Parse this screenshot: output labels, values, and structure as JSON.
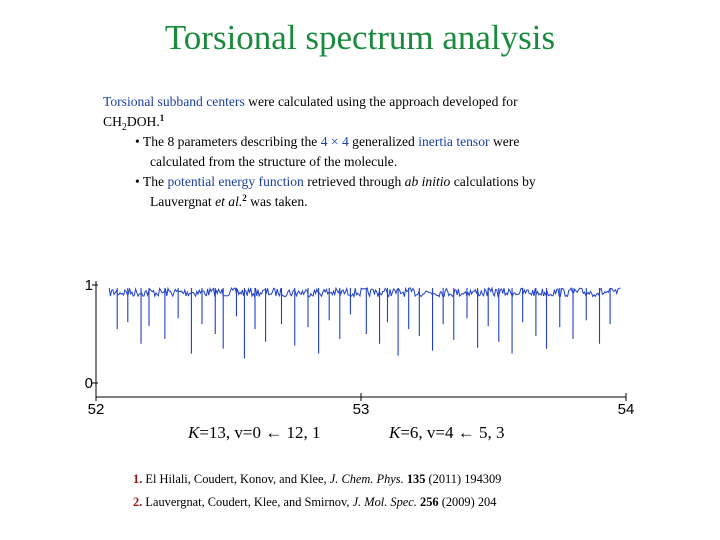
{
  "slide": {
    "title": "Torsional spectrum analysis",
    "intro": {
      "blue": "Torsional subband centers",
      "rest_a": " were calculated using the approach developed for",
      "formula_ch": "CH",
      "formula_sub": "2",
      "formula_rest": "DOH.",
      "ref_mark": "1"
    },
    "bullet1": {
      "marker": "•",
      "pre": " The 8 parameters describing the ",
      "dims": "4 × 4",
      "mid": " generalized ",
      "blue": "inertia tensor",
      "post": " were",
      "cont": "calculated from the structure of the molecule."
    },
    "bullet2": {
      "marker": "•",
      "pre": " The ",
      "blue": "potential energy function",
      "mid": " retrieved through ",
      "italic": "ab initio",
      "post": " calculations by",
      "cont_pre": "Lauvergnat ",
      "cont_italic": "et al.",
      "ref_mark": "2",
      "cont_post": " was taken."
    },
    "annotations": [
      {
        "k": "K",
        "rest": "=13, v=0 ← 12, 1"
      },
      {
        "k": "K",
        "rest": "=6, v=4 ← 5, 3"
      }
    ],
    "references": [
      {
        "num": "1.",
        "authors": "El Hilali, Coudert, Konov, and Klee, ",
        "journal": "J. Chem. Phys.",
        "vol": "135",
        "rest": " (2011) 194309"
      },
      {
        "num": "2.",
        "authors": "Lauvergnat, Coudert, Klee, and Smirnov, ",
        "journal": "J. Mol. Spec.",
        "vol": "256",
        "rest": " (2009) 204"
      }
    ]
  },
  "chart_data": {
    "type": "line",
    "title": "",
    "xlabel": "",
    "ylabel": "",
    "xlim": [
      52,
      54
    ],
    "ylim": [
      0,
      1
    ],
    "x_ticks": [
      52,
      53,
      54
    ],
    "y_ticks": [
      0,
      1
    ],
    "series_color": "#1f3fcc",
    "description_note": "",
    "series": [
      {
        "name": "",
        "x_range": [
          52.05,
          53.98
        ],
        "baseline": 0.97,
        "absorption_lines": [
          {
            "x": 52.08,
            "y": 0.55
          },
          {
            "x": 52.12,
            "y": 0.62
          },
          {
            "x": 52.17,
            "y": 0.4
          },
          {
            "x": 52.2,
            "y": 0.58
          },
          {
            "x": 52.26,
            "y": 0.45
          },
          {
            "x": 52.31,
            "y": 0.66
          },
          {
            "x": 52.36,
            "y": 0.3
          },
          {
            "x": 52.4,
            "y": 0.6
          },
          {
            "x": 52.45,
            "y": 0.5
          },
          {
            "x": 52.48,
            "y": 0.35
          },
          {
            "x": 52.53,
            "y": 0.68
          },
          {
            "x": 52.56,
            "y": 0.25
          },
          {
            "x": 52.6,
            "y": 0.55
          },
          {
            "x": 52.64,
            "y": 0.42
          },
          {
            "x": 52.7,
            "y": 0.6
          },
          {
            "x": 52.75,
            "y": 0.38
          },
          {
            "x": 52.8,
            "y": 0.57
          },
          {
            "x": 52.84,
            "y": 0.3
          },
          {
            "x": 52.88,
            "y": 0.64
          },
          {
            "x": 52.92,
            "y": 0.45
          },
          {
            "x": 52.96,
            "y": 0.7
          },
          {
            "x": 53.02,
            "y": 0.5
          },
          {
            "x": 53.07,
            "y": 0.4
          },
          {
            "x": 53.1,
            "y": 0.62
          },
          {
            "x": 53.14,
            "y": 0.28
          },
          {
            "x": 53.18,
            "y": 0.55
          },
          {
            "x": 53.22,
            "y": 0.48
          },
          {
            "x": 53.27,
            "y": 0.33
          },
          {
            "x": 53.31,
            "y": 0.6
          },
          {
            "x": 53.35,
            "y": 0.44
          },
          {
            "x": 53.4,
            "y": 0.66
          },
          {
            "x": 53.44,
            "y": 0.36
          },
          {
            "x": 53.48,
            "y": 0.58
          },
          {
            "x": 53.52,
            "y": 0.42
          },
          {
            "x": 53.57,
            "y": 0.3
          },
          {
            "x": 53.61,
            "y": 0.62
          },
          {
            "x": 53.66,
            "y": 0.48
          },
          {
            "x": 53.7,
            "y": 0.35
          },
          {
            "x": 53.75,
            "y": 0.57
          },
          {
            "x": 53.8,
            "y": 0.45
          },
          {
            "x": 53.85,
            "y": 0.64
          },
          {
            "x": 53.9,
            "y": 0.4
          },
          {
            "x": 53.94,
            "y": 0.6
          }
        ]
      }
    ]
  }
}
